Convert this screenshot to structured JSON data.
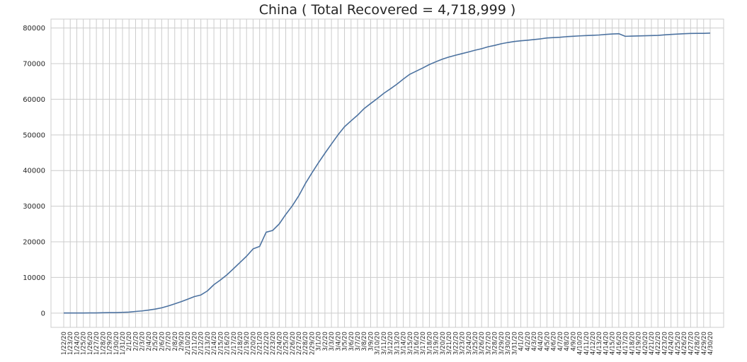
{
  "chart_data": {
    "type": "line",
    "title": "China ( Total Recovered = 4,718,999 )",
    "xlabel": "",
    "ylabel": "",
    "ylim": [
      -4000,
      82500
    ],
    "yticks": [
      0,
      10000,
      20000,
      30000,
      40000,
      50000,
      60000,
      70000,
      80000
    ],
    "grid": true,
    "legend": "none",
    "line_color": "#4c72a0",
    "x": [
      "1/22/20",
      "1/23/20",
      "1/24/20",
      "1/25/20",
      "1/26/20",
      "1/27/20",
      "1/28/20",
      "1/29/20",
      "1/30/20",
      "1/31/20",
      "2/1/20",
      "2/2/20",
      "2/3/20",
      "2/4/20",
      "2/5/20",
      "2/6/20",
      "2/7/20",
      "2/8/20",
      "2/9/20",
      "2/10/20",
      "2/11/20",
      "2/12/20",
      "2/13/20",
      "2/14/20",
      "2/15/20",
      "2/16/20",
      "2/17/20",
      "2/18/20",
      "2/19/20",
      "2/20/20",
      "2/21/20",
      "2/22/20",
      "2/23/20",
      "2/24/20",
      "2/25/20",
      "2/26/20",
      "2/27/20",
      "2/28/20",
      "2/29/20",
      "3/1/20",
      "3/2/20",
      "3/3/20",
      "3/4/20",
      "3/5/20",
      "3/6/20",
      "3/7/20",
      "3/8/20",
      "3/9/20",
      "3/10/20",
      "3/11/20",
      "3/12/20",
      "3/13/20",
      "3/14/20",
      "3/15/20",
      "3/16/20",
      "3/17/20",
      "3/18/20",
      "3/19/20",
      "3/20/20",
      "3/21/20",
      "3/22/20",
      "3/23/20",
      "3/24/20",
      "3/25/20",
      "3/26/20",
      "3/27/20",
      "3/28/20",
      "3/29/20",
      "3/30/20",
      "3/31/20",
      "4/1/20",
      "4/2/20",
      "4/3/20",
      "4/4/20",
      "4/5/20",
      "4/6/20",
      "4/7/20",
      "4/8/20",
      "4/9/20",
      "4/10/20",
      "4/11/20",
      "4/12/20",
      "4/13/20",
      "4/14/20",
      "4/15/20",
      "4/16/20",
      "4/17/20",
      "4/18/20",
      "4/19/20",
      "4/20/20",
      "4/21/20",
      "4/22/20",
      "4/23/20",
      "4/24/20",
      "4/25/20",
      "4/26/20",
      "4/27/20",
      "4/28/20",
      "4/29/20",
      "4/30/20"
    ],
    "series": [
      {
        "values": [
          28,
          30,
          36,
          39,
          49,
          58,
          101,
          120,
          135,
          214,
          275,
          463,
          614,
          843,
          1115,
          1477,
          1999,
          2596,
          3219,
          3918,
          4636,
          5082,
          6217,
          7977,
          9298,
          10755,
          12462,
          14206,
          15962,
          18014,
          18704,
          22699,
          23187,
          25015,
          27676,
          30084,
          32930,
          36329,
          39320,
          42162,
          44854,
          47450,
          50001,
          52292,
          53944,
          55539,
          57388,
          58804,
          60181,
          61644,
          62901,
          64196,
          65660,
          67017,
          67910,
          68798,
          69755,
          70535,
          71266,
          71857,
          72362,
          72814,
          73280,
          73773,
          74196,
          74737,
          75122,
          75582,
          75923,
          76206,
          76405,
          76565,
          76760,
          76946,
          77207,
          77310,
          77410,
          77567,
          77679,
          77791,
          77877,
          77956,
          78039,
          78200,
          78311,
          78401,
          77663,
          77733,
          77779,
          77820,
          77867,
          77920,
          78075,
          78194,
          78304,
          78391,
          78463,
          78487,
          78500,
          78578
        ]
      }
    ]
  }
}
